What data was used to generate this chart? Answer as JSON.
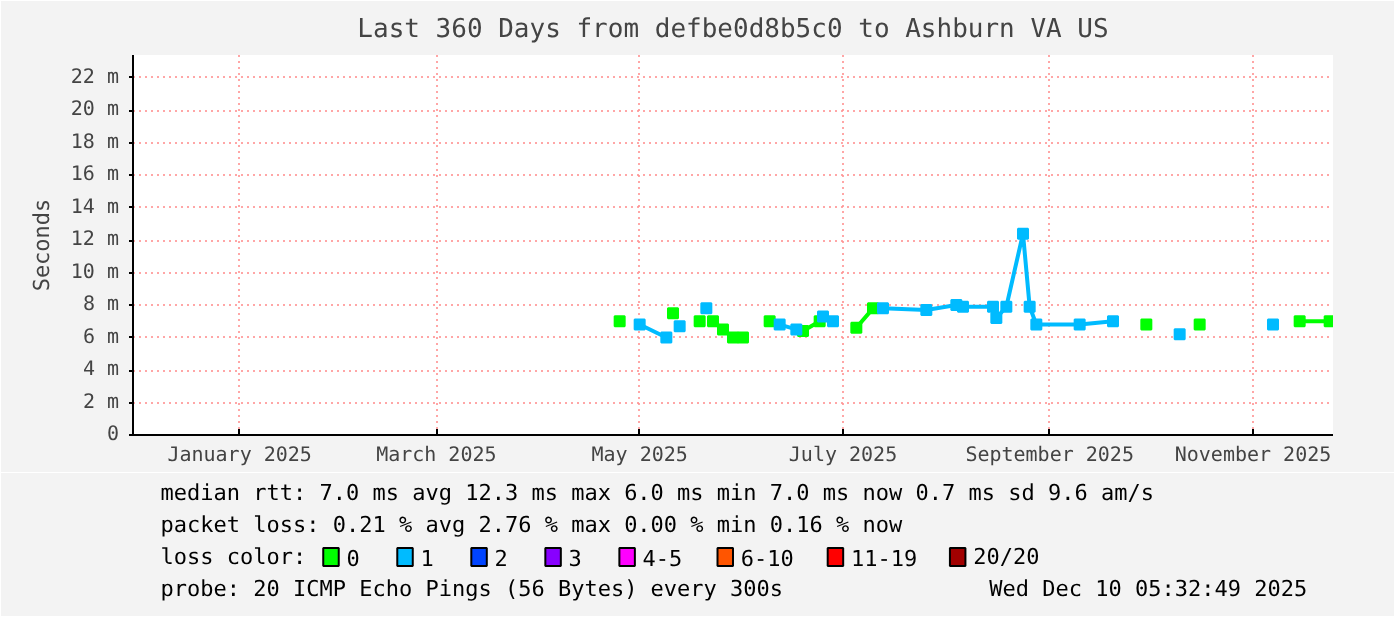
{
  "chart_data": {
    "type": "line",
    "title": "Last 360 Days from defbe0d8b5c0 to Ashburn VA US",
    "ylabel": "Seconds",
    "x": [
      "2025-05-10",
      "2025-05-16",
      "2025-05-24",
      "2025-05-26",
      "2025-05-28",
      "2025-06-03",
      "2025-06-05",
      "2025-06-07",
      "2025-06-10",
      "2025-06-13",
      "2025-06-16",
      "2025-06-20",
      "2025-06-24",
      "2025-06-27",
      "2025-07-02",
      "2025-07-04",
      "2025-07-09",
      "2025-07-10",
      "2025-07-13",
      "2025-07-20",
      "2025-07-25",
      "2025-07-28",
      "2025-08-10",
      "2025-08-19",
      "2025-08-21",
      "2025-08-30",
      "2025-08-31",
      "2025-09-03",
      "2025-09-08",
      "2025-09-10",
      "2025-09-12",
      "2025-09-25",
      "2025-10-05",
      "2025-10-15",
      "2025-10-25",
      "2025-10-31",
      "2025-11-22",
      "2025-11-30",
      "2025-12-09"
    ],
    "series": [
      {
        "name": "0",
        "color": "#00ff00",
        "values": [
          7.0,
          null,
          null,
          7.5,
          null,
          7.0,
          null,
          7.0,
          6.5,
          6.0,
          6.0,
          null,
          7.0,
          null,
          null,
          6.4,
          7.0,
          null,
          null,
          6.6,
          7.8,
          null,
          null,
          null,
          null,
          null,
          null,
          null,
          null,
          null,
          null,
          null,
          null,
          6.8,
          null,
          6.8,
          null,
          7.0,
          7.0
        ]
      },
      {
        "name": "1",
        "color": "#00bbff",
        "values": [
          null,
          6.8,
          6.0,
          null,
          6.7,
          null,
          7.8,
          null,
          null,
          null,
          null,
          null,
          null,
          6.8,
          6.5,
          null,
          null,
          7.3,
          7.0,
          null,
          null,
          7.8,
          7.7,
          8.0,
          7.9,
          7.9,
          7.2,
          7.9,
          12.4,
          7.9,
          6.8,
          6.8,
          7.0,
          null,
          6.2,
          null,
          6.8,
          null,
          null
        ]
      },
      {
        "name": "2",
        "color": "#0044ff",
        "values": [
          null,
          null,
          null,
          null,
          null,
          null,
          null,
          null,
          null,
          null,
          null,
          null,
          null,
          null,
          null,
          null,
          null,
          null,
          null,
          null,
          null,
          null,
          null,
          null,
          null,
          null,
          null,
          null,
          null,
          null,
          null,
          null,
          null,
          null,
          null,
          null,
          null,
          null,
          null
        ]
      },
      {
        "name": "3",
        "color": "#8800ff",
        "values": [
          null,
          null,
          null,
          null,
          null,
          null,
          null,
          null,
          null,
          null,
          null,
          null,
          null,
          null,
          null,
          null,
          null,
          null,
          null,
          null,
          null,
          null,
          null,
          null,
          null,
          null,
          null,
          null,
          null,
          null,
          null,
          null,
          null,
          null,
          null,
          null,
          null,
          null,
          null
        ]
      },
      {
        "name": "4-5",
        "color": "#ff00ff",
        "values": [
          null,
          null,
          null,
          null,
          null,
          null,
          null,
          null,
          null,
          null,
          null,
          null,
          null,
          null,
          null,
          null,
          null,
          null,
          null,
          null,
          null,
          null,
          null,
          null,
          null,
          null,
          null,
          null,
          null,
          null,
          null,
          null,
          null,
          null,
          null,
          null,
          null,
          null,
          null
        ]
      },
      {
        "name": "6-10",
        "color": "#ff5500",
        "values": [
          null,
          null,
          null,
          null,
          null,
          null,
          null,
          null,
          null,
          null,
          null,
          null,
          null,
          null,
          null,
          null,
          null,
          null,
          null,
          null,
          null,
          null,
          null,
          null,
          null,
          null,
          null,
          null,
          null,
          null,
          null,
          null,
          null,
          null,
          null,
          null,
          null,
          null,
          null
        ]
      },
      {
        "name": "11-19",
        "color": "#ff0000",
        "values": [
          null,
          null,
          null,
          null,
          null,
          null,
          null,
          null,
          null,
          null,
          null,
          null,
          null,
          null,
          null,
          null,
          null,
          null,
          null,
          null,
          null,
          null,
          null,
          null,
          null,
          null,
          null,
          null,
          null,
          null,
          null,
          null,
          null,
          null,
          null,
          null,
          null,
          null,
          null
        ]
      },
      {
        "name": "20/20",
        "color": "#a10000",
        "values": [
          null,
          null,
          null,
          null,
          null,
          null,
          null,
          null,
          null,
          null,
          null,
          null,
          null,
          null,
          null,
          null,
          null,
          null,
          null,
          null,
          null,
          null,
          null,
          null,
          null,
          null,
          null,
          null,
          null,
          null,
          null,
          null,
          null,
          null,
          null,
          null,
          null,
          null,
          null
        ]
      }
    ],
    "xlim": [
      "2024-12-15",
      "2025-12-10"
    ],
    "xticks": [
      {
        "value": "2025-01-16",
        "label": "January 2025"
      },
      {
        "value": "2025-03-16",
        "label": "March 2025"
      },
      {
        "value": "2025-05-16",
        "label": "May 2025"
      },
      {
        "value": "2025-07-16",
        "label": "July 2025"
      },
      {
        "value": "2025-09-16",
        "label": "September 2025"
      },
      {
        "value": "2025-11-16",
        "label": "November 2025"
      }
    ],
    "ylim": [
      0,
      23.4
    ],
    "yticks": [
      0,
      {
        "value": 2,
        "label": "2 m"
      },
      {
        "value": 4,
        "label": "4 m"
      },
      {
        "value": 6,
        "label": "6 m"
      },
      {
        "value": 8,
        "label": "8 m"
      },
      {
        "value": 10,
        "label": "10 m"
      },
      {
        "value": 12,
        "label": "12 m"
      },
      {
        "value": 14,
        "label": "14 m"
      },
      {
        "value": 16,
        "label": "16 m"
      },
      {
        "value": 18,
        "label": "18 m"
      },
      {
        "value": 20,
        "label": "20 m"
      },
      {
        "value": 22,
        "label": "22 m"
      }
    ],
    "grid": true,
    "legend": "bottom",
    "legend_title": "loss color:",
    "marker": "square",
    "line_style": "solid",
    "annotations": [
      "median rtt:  7.0 ms avg  12.3 ms max   6.0 ms min   7.0 ms now   0.7 ms sd   9.6   am/s",
      "packet loss: 0.21 % avg  2.76 % max  0.00 % min  0.16 % now",
      "probe:       20 ICMP Echo Pings (56 Bytes) every 300s",
      "Wed Dec 10 05:32:49 2025"
    ]
  }
}
